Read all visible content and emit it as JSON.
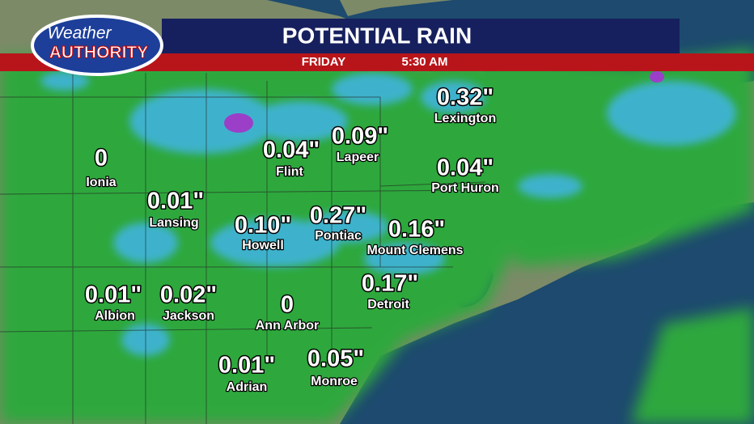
{
  "header": {
    "logo_top": "Weather",
    "logo_bottom": "AUTHORITY",
    "title": "POTENTIAL RAIN",
    "day": "FRIDAY",
    "time": "5:30 AM"
  },
  "cities": [
    {
      "amount": "0",
      "name": "Ionia"
    },
    {
      "amount": "0.32\"",
      "name": "Lexington"
    },
    {
      "amount": "0.09\"",
      "name": "Lapeer"
    },
    {
      "amount": "0.04\"",
      "name": "Flint"
    },
    {
      "amount": "0.04\"",
      "name": "Port Huron"
    },
    {
      "amount": "0.01\"",
      "name": "Lansing"
    },
    {
      "amount": "0.10\"",
      "name": "Howell"
    },
    {
      "amount": "0.27\"",
      "name": "Pontiac"
    },
    {
      "amount": "0.16\"",
      "name": "Mount Clemens"
    },
    {
      "amount": "0.01\"",
      "name": "Albion"
    },
    {
      "amount": "0.02\"",
      "name": "Jackson"
    },
    {
      "amount": "0",
      "name": "Ann Arbor"
    },
    {
      "amount": "0.17\"",
      "name": "Detroit"
    },
    {
      "amount": "0.01\"",
      "name": "Adrian"
    },
    {
      "amount": "0.05\"",
      "name": "Monroe"
    }
  ]
}
